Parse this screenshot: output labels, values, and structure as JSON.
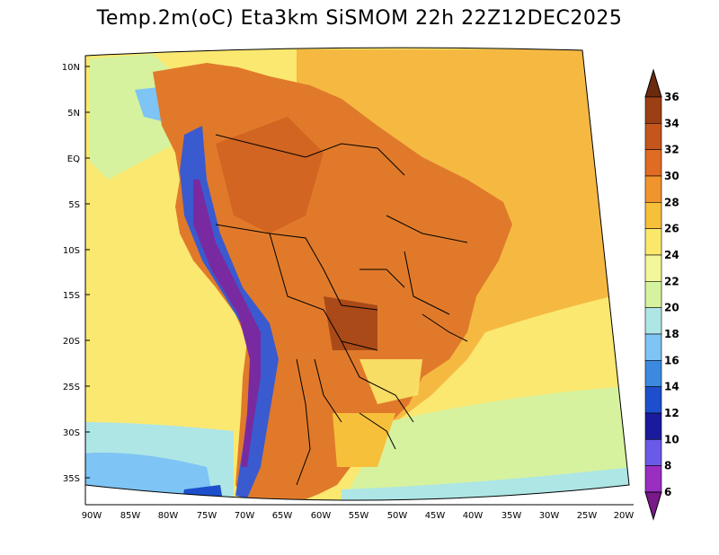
{
  "title": "Temp.2m(oC) Eta3km SiSMOM 22h 22Z12DEC2025",
  "lat_labels": [
    "10N",
    "5N",
    "EQ",
    "5S",
    "10S",
    "15S",
    "20S",
    "25S",
    "30S",
    "35S"
  ],
  "lon_labels": [
    "90W",
    "85W",
    "80W",
    "75W",
    "70W",
    "65W",
    "60W",
    "55W",
    "50W",
    "45W",
    "40W",
    "35W",
    "30W",
    "25W",
    "20W"
  ],
  "colorbar": {
    "labels": [
      "36",
      "34",
      "32",
      "30",
      "28",
      "26",
      "24",
      "22",
      "20",
      "18",
      "16",
      "14",
      "12",
      "10",
      "8",
      "6"
    ],
    "colors": [
      "#6b2a0e",
      "#9c3f14",
      "#c4561c",
      "#e06b22",
      "#f0952e",
      "#f7c03a",
      "#fbe86a",
      "#f4f69a",
      "#d6f29e",
      "#aee6e6",
      "#7ec4f4",
      "#3c8ae0",
      "#1d4fcc",
      "#1a1a9c",
      "#6a5ae8",
      "#9a2ec0",
      "#7a1a8a"
    ]
  },
  "regions": {
    "ocean_warm": "#f5b942",
    "ocean_mild": "#fbe870",
    "ocean_cool": "#c6ee9c",
    "land_hot": "#e07a2a",
    "land_very_hot": "#c7561d",
    "andes_cold": "#3a5ad0",
    "andes_very_cold": "#7a2aa0",
    "border": "#000000"
  }
}
